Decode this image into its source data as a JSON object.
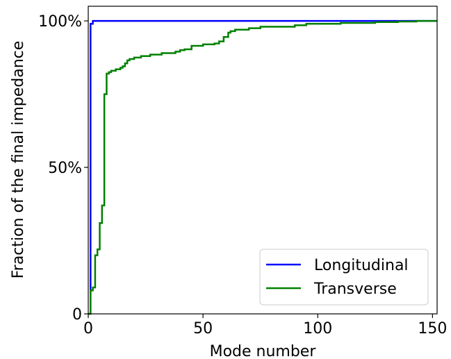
{
  "chart_data": {
    "type": "line",
    "title": "",
    "xlabel": "Mode number",
    "ylabel": "Fraction of the final impedance",
    "xlim": [
      0,
      152
    ],
    "ylim": [
      0,
      105
    ],
    "x_ticks": [
      0,
      50,
      100,
      150
    ],
    "x_tick_labels": [
      "0",
      "50",
      "100",
      "150"
    ],
    "y_ticks": [
      0,
      50,
      100
    ],
    "y_tick_labels": [
      "0",
      "50%",
      "100%"
    ],
    "grid": false,
    "legend_position": "bottom-right",
    "step": true,
    "series": [
      {
        "name": "Longitudinal",
        "color": "#0000ff",
        "points": [
          [
            1,
            0
          ],
          [
            1,
            99
          ],
          [
            2,
            99
          ],
          [
            2,
            100
          ],
          [
            152,
            100
          ]
        ]
      },
      {
        "name": "Transverse",
        "color": "#008000",
        "points": [
          [
            0,
            0
          ],
          [
            1,
            0
          ],
          [
            1,
            8
          ],
          [
            2,
            8
          ],
          [
            2,
            9
          ],
          [
            3,
            9
          ],
          [
            3,
            20
          ],
          [
            4,
            20
          ],
          [
            4,
            22
          ],
          [
            5,
            22
          ],
          [
            5,
            31
          ],
          [
            6,
            31
          ],
          [
            6,
            37
          ],
          [
            7,
            37
          ],
          [
            7,
            75
          ],
          [
            8,
            75
          ],
          [
            8,
            82
          ],
          [
            9,
            82
          ],
          [
            9,
            82.5
          ],
          [
            10,
            82.5
          ],
          [
            10,
            83
          ],
          [
            12,
            83
          ],
          [
            12,
            83.5
          ],
          [
            14,
            83.5
          ],
          [
            14,
            84
          ],
          [
            15,
            84
          ],
          [
            15,
            84.5
          ],
          [
            16,
            84.5
          ],
          [
            16,
            85.5
          ],
          [
            17,
            85.5
          ],
          [
            17,
            86.5
          ],
          [
            18,
            86.5
          ],
          [
            18,
            87
          ],
          [
            20,
            87
          ],
          [
            20,
            87.5
          ],
          [
            23,
            87.5
          ],
          [
            23,
            88
          ],
          [
            27,
            88
          ],
          [
            27,
            88.5
          ],
          [
            32,
            88.5
          ],
          [
            32,
            89
          ],
          [
            38,
            89
          ],
          [
            38,
            89.5
          ],
          [
            40,
            89.5
          ],
          [
            40,
            90
          ],
          [
            42,
            90
          ],
          [
            42,
            90.3
          ],
          [
            45,
            90.3
          ],
          [
            45,
            91.5
          ],
          [
            50,
            91.5
          ],
          [
            50,
            92
          ],
          [
            55,
            92
          ],
          [
            55,
            92.3
          ],
          [
            57,
            92.3
          ],
          [
            57,
            93
          ],
          [
            59,
            93
          ],
          [
            59,
            94.5
          ],
          [
            61,
            94.5
          ],
          [
            61,
            96
          ],
          [
            62,
            96
          ],
          [
            62,
            96.5
          ],
          [
            64,
            96.5
          ],
          [
            64,
            97
          ],
          [
            70,
            97
          ],
          [
            70,
            97.5
          ],
          [
            75,
            97.5
          ],
          [
            75,
            98
          ],
          [
            90,
            98
          ],
          [
            90,
            98.5
          ],
          [
            95,
            98.5
          ],
          [
            95,
            99
          ],
          [
            110,
            99
          ],
          [
            110,
            99.3
          ],
          [
            125,
            99.3
          ],
          [
            125,
            99.6
          ],
          [
            135,
            99.6
          ],
          [
            135,
            99.8
          ],
          [
            143,
            99.8
          ],
          [
            143,
            100
          ],
          [
            152,
            100
          ]
        ]
      }
    ]
  }
}
